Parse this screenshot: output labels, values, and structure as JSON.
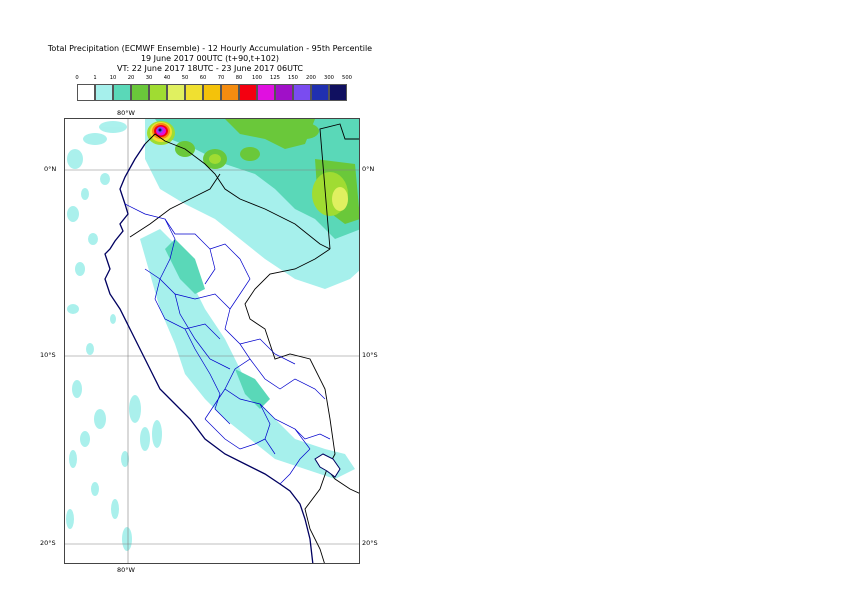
{
  "header": {
    "title_line1": "Total Precipitation (ECMWF Ensemble) - 12 Hourly Accumulation - 95th Percentile",
    "title_line2": "19 June 2017 00UTC (t+90,t+102)",
    "title_line3": "VT: 22 June 2017 18UTC - 23 June 2017 06UTC"
  },
  "colorbar": {
    "ticks": [
      "0",
      "1",
      "10",
      "20",
      "30",
      "40",
      "50",
      "60",
      "70",
      "80",
      "100",
      "125",
      "150",
      "200",
      "300",
      "500"
    ],
    "colors": [
      "#ffffff",
      "#a6f0ec",
      "#5ad8b8",
      "#6ac83a",
      "#a0dc32",
      "#e0f060",
      "#f0e030",
      "#f4c20a",
      "#f48c10",
      "#f40010",
      "#e010e0",
      "#a010c8",
      "#7a4cf0",
      "#2030b0",
      "#101060"
    ]
  },
  "map": {
    "lat_labels": {
      "lat0_left": "0°N",
      "lat0_right": "0°N",
      "lat10_left": "10°S",
      "lat10_right": "10°S",
      "lat20_left": "20°S",
      "lat20_right": "20°S"
    },
    "lon_labels": {
      "lon80_top": "80°W",
      "lon80_bottom": "80°W"
    },
    "colors": {
      "coast": "#000060",
      "admin": "#0000cc",
      "border": "#000000",
      "grid": "#808080"
    }
  }
}
